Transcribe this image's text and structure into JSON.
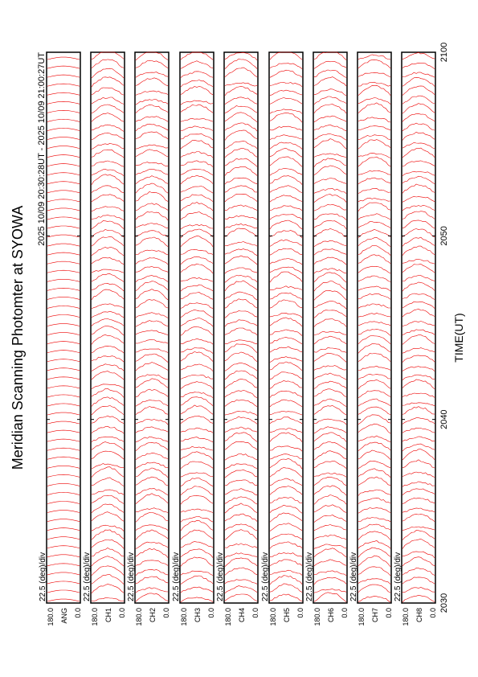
{
  "title": "Meridian Scanning Photomter at SYOWA",
  "subtitle": "2025 10/09 20:30:28UT - 2025 10/09 21:00:27UT",
  "x_axis": {
    "label": "TIME(UT)",
    "ticks": [
      "2030",
      "2040",
      "2050",
      "2100"
    ]
  },
  "panels": [
    {
      "channel": "ANG",
      "scale": "22.5 (deg)/div",
      "ytop": "180.0",
      "ybottom": "0.0"
    },
    {
      "channel": "CH1",
      "scale": "22.5 (deg)/div",
      "ytop": "180.0",
      "ybottom": "0.0"
    },
    {
      "channel": "CH2",
      "scale": "22.5 (deg)/div",
      "ytop": "180.0",
      "ybottom": "0.0"
    },
    {
      "channel": "CH3",
      "scale": "22.5 (deg)/div",
      "ytop": "180.0",
      "ybottom": "0.0"
    },
    {
      "channel": "CH4",
      "scale": "22.5 (deg)/div",
      "ytop": "180.0",
      "ybottom": "0.0"
    },
    {
      "channel": "CH5",
      "scale": "22.5 (deg)/div",
      "ytop": "180.0",
      "ybottom": "0.0"
    },
    {
      "channel": "CH6",
      "scale": "22.5 (deg)/div",
      "ytop": "180.0",
      "ybottom": "0.0"
    },
    {
      "channel": "CH7",
      "scale": "22.5 (deg)/div",
      "ytop": "180.0",
      "ybottom": "0.0"
    },
    {
      "channel": "CH8",
      "scale": "22.5 (deg)/div",
      "ytop": "180.0",
      "ybottom": "0.0"
    }
  ]
}
